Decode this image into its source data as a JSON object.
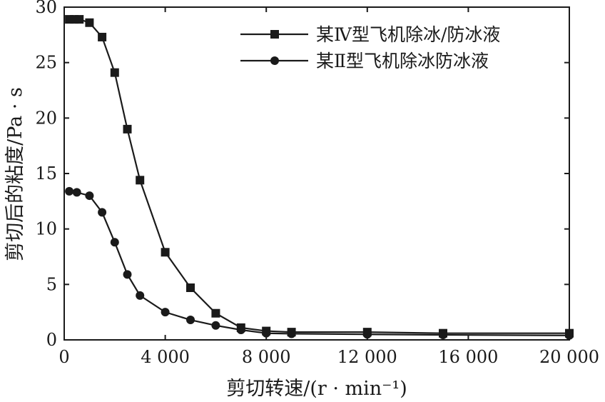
{
  "chart_data": {
    "type": "line",
    "xlabel": "剪切转速/(r · min⁻¹)",
    "ylabel": "剪切后的粘度/Pa · s",
    "xlim": [
      0,
      20000
    ],
    "ylim": [
      0,
      30
    ],
    "x_ticks": [
      0,
      4000,
      8000,
      12000,
      16000,
      20000
    ],
    "x_tick_labels": [
      "0",
      "4 000",
      "8 000",
      "12 000",
      "16 000",
      "20 000"
    ],
    "y_ticks": [
      0,
      5,
      10,
      15,
      20,
      25,
      30
    ],
    "y_tick_labels": [
      "0",
      "5",
      "10",
      "15",
      "20",
      "25",
      "30"
    ],
    "grid": false,
    "legend_position": "top-right",
    "series": [
      {
        "name": "某Ⅳ型飞机除冰/防冰液",
        "marker": "square",
        "color": "#1a1a1a",
        "x": [
          200,
          400,
          600,
          1000,
          1500,
          2000,
          2500,
          3000,
          4000,
          5000,
          6000,
          7000,
          8000,
          9000,
          12000,
          15000,
          20000
        ],
        "y": [
          28.9,
          28.9,
          28.9,
          28.6,
          27.3,
          24.1,
          19.0,
          14.4,
          7.9,
          4.7,
          2.4,
          1.1,
          0.8,
          0.7,
          0.7,
          0.6,
          0.6
        ]
      },
      {
        "name": "某Ⅱ型飞机除冰防冰液",
        "marker": "circle",
        "color": "#1a1a1a",
        "x": [
          200,
          500,
          1000,
          1500,
          2000,
          2500,
          3000,
          4000,
          5000,
          6000,
          7000,
          8000,
          9000,
          12000,
          15000,
          20000
        ],
        "y": [
          13.4,
          13.3,
          13.0,
          11.5,
          8.8,
          5.9,
          4.0,
          2.5,
          1.8,
          1.3,
          0.9,
          0.6,
          0.55,
          0.5,
          0.45,
          0.4
        ]
      }
    ]
  }
}
